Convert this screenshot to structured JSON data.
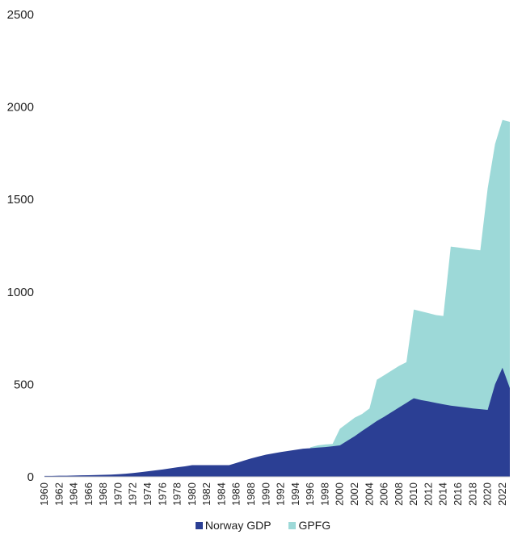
{
  "chart_data": {
    "type": "area",
    "stacked": false,
    "x": [
      1960,
      1961,
      1962,
      1963,
      1964,
      1965,
      1966,
      1967,
      1968,
      1969,
      1970,
      1971,
      1972,
      1973,
      1974,
      1975,
      1976,
      1977,
      1978,
      1979,
      1980,
      1981,
      1982,
      1983,
      1984,
      1985,
      1986,
      1987,
      1988,
      1989,
      1990,
      1991,
      1992,
      1993,
      1994,
      1995,
      1996,
      1997,
      1998,
      1999,
      2000,
      2001,
      2002,
      2003,
      2004,
      2005,
      2006,
      2007,
      2008,
      2009,
      2010,
      2011,
      2012,
      2013,
      2014,
      2015,
      2016,
      2017,
      2018,
      2019,
      2020,
      2021,
      2022,
      2023
    ],
    "x_tick_labels": [
      "1960",
      "1962",
      "1964",
      "1966",
      "1968",
      "1970",
      "1972",
      "1974",
      "1976",
      "1978",
      "1980",
      "1982",
      "1984",
      "1986",
      "1988",
      "1990",
      "1992",
      "1994",
      "1996",
      "1998",
      "2000",
      "2002",
      "2004",
      "2006",
      "2008",
      "2010",
      "2012",
      "2014",
      "2016",
      "2018",
      "2020",
      "2022"
    ],
    "series": [
      {
        "name": "GPFG",
        "color": "#9dd9d8",
        "values": [
          0,
          0,
          0,
          0,
          0,
          0,
          0,
          0,
          0,
          0,
          0,
          0,
          0,
          0,
          0,
          0,
          0,
          0,
          0,
          0,
          0,
          0,
          0,
          0,
          0,
          0,
          0,
          0,
          0,
          0,
          0,
          0,
          0,
          0,
          0,
          0,
          160,
          170,
          175,
          178,
          260,
          290,
          320,
          340,
          370,
          525,
          550,
          575,
          600,
          620,
          905,
          895,
          885,
          875,
          870,
          1245,
          1240,
          1235,
          1230,
          1225,
          1560,
          1800,
          1930,
          1920
        ]
      },
      {
        "name": "Norway GDP",
        "color": "#2b3f94",
        "values": [
          5,
          5,
          6,
          6,
          7,
          8,
          9,
          10,
          11,
          12,
          14,
          17,
          21,
          25,
          30,
          35,
          40,
          46,
          52,
          57,
          63,
          63,
          63,
          63,
          63,
          63,
          75,
          88,
          100,
          110,
          120,
          127,
          134,
          140,
          146,
          152,
          155,
          158,
          161,
          165,
          170,
          195,
          220,
          248,
          275,
          302,
          325,
          350,
          375,
          400,
          425,
          415,
          408,
          400,
          392,
          385,
          380,
          375,
          370,
          366,
          362,
          500,
          590,
          480
        ]
      }
    ],
    "ylim": [
      0,
      2500
    ],
    "y_ticks": [
      0,
      500,
      1000,
      1500,
      2000,
      2500
    ],
    "xlabel": "",
    "ylabel": "",
    "grid": false,
    "legend_position": "bottom-center",
    "legend": [
      "Norway GDP",
      "GPFG"
    ]
  }
}
